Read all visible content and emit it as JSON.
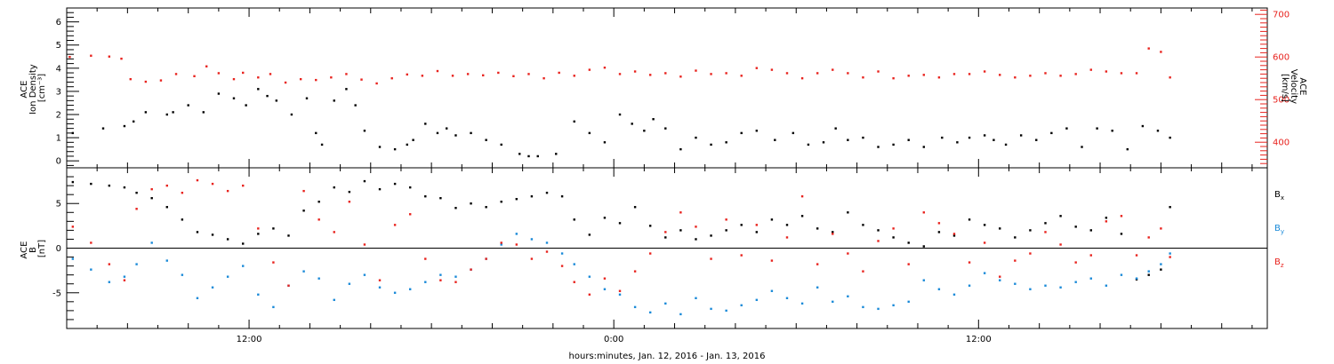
{
  "figure": {
    "xlabel": "hours:minutes, Jan. 12, 2016 - Jan. 13, 2016",
    "x_tick_labels": [
      "12:00",
      "0:00",
      "12:00"
    ],
    "colors": {
      "axis": "#000000",
      "red": "#e8231e",
      "blue": "#1a8ad8",
      "black": "#000000"
    }
  },
  "chart_data": [
    {
      "type": "scatter",
      "panel": "top",
      "xlim_hours": [
        6.0,
        45.5
      ],
      "x_tick_hours": [
        12,
        24,
        36
      ],
      "left_axis": {
        "label_lines": [
          "ACE",
          "Ion Density",
          "[cm⁻³]"
        ],
        "ylim": [
          -0.3,
          6.6
        ],
        "ticks": [
          0,
          1,
          2,
          3,
          4,
          5,
          6
        ]
      },
      "right_axis": {
        "label_lines": [
          "ACE",
          "Velocity",
          "[km/s]"
        ],
        "ylim": [
          340,
          715
        ],
        "ticks": [
          400,
          500,
          600,
          700
        ]
      },
      "series": [
        {
          "axis": "left",
          "color": "#000000",
          "x": [
            6.2,
            7.2,
            7.9,
            8.2,
            8.6,
            9.3,
            9.5,
            10.0,
            10.5,
            11.0,
            11.5,
            11.9,
            12.3,
            12.6,
            12.9,
            13.4,
            13.9,
            14.2,
            14.4,
            14.8,
            15.2,
            15.5,
            15.8,
            16.3,
            16.8,
            17.2,
            17.4,
            17.8,
            18.2,
            18.5,
            18.8,
            19.3,
            19.8,
            20.3,
            20.9,
            21.2,
            21.5,
            22.1,
            22.7,
            23.2,
            23.7,
            24.2,
            24.6,
            25.0,
            25.3,
            25.7,
            26.2,
            26.7,
            27.2,
            27.7,
            28.2,
            28.7,
            29.3,
            29.9,
            30.4,
            30.9,
            31.3,
            31.7,
            32.2,
            32.7,
            33.2,
            33.7,
            34.2,
            34.8,
            35.3,
            35.7,
            36.2,
            36.5,
            36.9,
            37.4,
            37.9,
            38.4,
            38.9,
            39.4,
            39.9,
            40.4,
            40.9,
            41.4,
            41.9,
            42.3
          ],
          "y": [
            1.2,
            1.4,
            1.5,
            1.7,
            2.1,
            2.0,
            2.1,
            2.4,
            2.1,
            2.9,
            2.7,
            2.4,
            3.1,
            2.8,
            2.6,
            2.0,
            2.7,
            1.2,
            0.7,
            2.6,
            3.1,
            2.4,
            1.3,
            0.6,
            0.5,
            0.7,
            0.9,
            1.6,
            1.2,
            1.4,
            1.1,
            1.2,
            0.9,
            0.7,
            0.3,
            0.2,
            0.2,
            0.3,
            1.7,
            1.2,
            0.8,
            2.0,
            1.6,
            1.3,
            1.8,
            1.4,
            0.5,
            1.0,
            0.7,
            0.8,
            1.2,
            1.3,
            0.9,
            1.2,
            0.7,
            0.8,
            1.4,
            0.9,
            1.0,
            0.6,
            0.7,
            0.9,
            0.6,
            1.0,
            0.8,
            1.0,
            1.1,
            0.9,
            0.7,
            1.1,
            0.9,
            1.2,
            1.4,
            0.6,
            1.4,
            1.3,
            0.5,
            1.5,
            1.3,
            1.0
          ]
        },
        {
          "axis": "right",
          "color": "#e8231e",
          "x": [
            6.1,
            6.8,
            7.4,
            7.8,
            8.1,
            8.6,
            9.1,
            9.6,
            10.2,
            10.6,
            11.0,
            11.5,
            11.8,
            12.3,
            12.7,
            13.2,
            13.7,
            14.2,
            14.7,
            15.2,
            15.7,
            16.2,
            16.7,
            17.2,
            17.7,
            18.2,
            18.7,
            19.2,
            19.7,
            20.2,
            20.7,
            21.2,
            21.7,
            22.2,
            22.7,
            23.2,
            23.7,
            24.2,
            24.7,
            25.2,
            25.7,
            26.2,
            26.7,
            27.2,
            27.7,
            28.2,
            28.7,
            29.2,
            29.7,
            30.2,
            30.7,
            31.2,
            31.7,
            32.2,
            32.7,
            33.2,
            33.7,
            34.2,
            34.7,
            35.2,
            35.7,
            36.2,
            36.7,
            37.2,
            37.7,
            38.2,
            38.7,
            39.2,
            39.7,
            40.2,
            40.7,
            41.2,
            41.6,
            42.0,
            42.3
          ],
          "y": [
            600,
            603,
            601,
            596,
            548,
            542,
            545,
            560,
            555,
            578,
            562,
            548,
            563,
            552,
            560,
            540,
            548,
            546,
            552,
            560,
            547,
            538,
            550,
            559,
            556,
            567,
            556,
            560,
            557,
            563,
            555,
            560,
            550,
            563,
            556,
            570,
            575,
            560,
            566,
            558,
            562,
            554,
            568,
            560,
            562,
            556,
            574,
            570,
            562,
            550,
            562,
            570,
            562,
            552,
            566,
            550,
            556,
            558,
            552,
            560,
            560,
            566,
            558,
            552,
            556,
            562,
            556,
            560,
            570,
            566,
            562,
            562,
            620,
            612,
            552
          ]
        }
      ]
    },
    {
      "type": "scatter",
      "panel": "bottom",
      "xlim_hours": [
        6.0,
        45.5
      ],
      "x_tick_hours": [
        12,
        24,
        36
      ],
      "axis": {
        "label_lines": [
          "ACE",
          "B",
          "[nT]"
        ],
        "ylim": [
          -9.0,
          9.0
        ],
        "ticks": [
          -5,
          0,
          5
        ],
        "zero_line": true
      },
      "legend": {
        "placement": "right",
        "entries": [
          {
            "label": "B",
            "sub": "x",
            "color": "#000000"
          },
          {
            "label": "B",
            "sub": "y",
            "color": "#1a8ad8"
          },
          {
            "label": "B",
            "sub": "z",
            "color": "#e8231e"
          }
        ]
      },
      "series": [
        {
          "name": "Bx",
          "color": "#000000",
          "x": [
            6.2,
            6.8,
            7.4,
            7.9,
            8.3,
            8.8,
            9.3,
            9.8,
            10.3,
            10.8,
            11.3,
            11.8,
            12.3,
            12.8,
            13.3,
            13.8,
            14.3,
            14.8,
            15.3,
            15.8,
            16.3,
            16.8,
            17.3,
            17.8,
            18.3,
            18.8,
            19.3,
            19.8,
            20.3,
            20.8,
            21.3,
            21.8,
            22.3,
            22.7,
            23.2,
            23.7,
            24.2,
            24.7,
            25.2,
            25.7,
            26.2,
            26.7,
            27.2,
            27.7,
            28.2,
            28.7,
            29.2,
            29.7,
            30.2,
            30.7,
            31.2,
            31.7,
            32.2,
            32.7,
            33.2,
            33.7,
            34.2,
            34.7,
            35.2,
            35.7,
            36.2,
            36.7,
            37.2,
            37.7,
            38.2,
            38.7,
            39.2,
            39.7,
            40.2,
            40.7,
            41.2,
            41.6,
            42.0,
            42.3
          ],
          "y": [
            7.4,
            7.2,
            7.0,
            6.8,
            6.2,
            5.6,
            4.6,
            3.2,
            1.8,
            1.5,
            1.0,
            0.5,
            1.6,
            2.2,
            1.4,
            4.2,
            5.2,
            6.8,
            6.3,
            7.5,
            6.6,
            7.2,
            6.8,
            5.8,
            5.6,
            4.5,
            5.0,
            4.6,
            5.2,
            5.5,
            5.8,
            6.2,
            5.8,
            3.2,
            1.5,
            3.4,
            2.8,
            4.6,
            2.5,
            1.2,
            2.0,
            1.0,
            1.4,
            2.0,
            2.6,
            1.8,
            3.2,
            2.6,
            3.6,
            2.2,
            1.8,
            4.0,
            2.6,
            2.0,
            1.2,
            0.6,
            0.2,
            1.8,
            1.4,
            3.2,
            2.6,
            2.2,
            1.2,
            2.0,
            2.8,
            3.6,
            2.4,
            2.0,
            3.4,
            1.6,
            -3.5,
            -3.0,
            -2.4,
            4.6
          ]
        },
        {
          "name": "By",
          "color": "#1a8ad8",
          "x": [
            6.2,
            6.8,
            7.4,
            7.9,
            8.3,
            8.8,
            9.3,
            9.8,
            10.3,
            10.8,
            11.3,
            11.8,
            12.3,
            12.8,
            13.3,
            13.8,
            14.3,
            14.8,
            15.3,
            15.8,
            16.3,
            16.8,
            17.3,
            17.8,
            18.3,
            18.8,
            19.3,
            19.8,
            20.3,
            20.8,
            21.3,
            21.8,
            22.3,
            22.7,
            23.2,
            23.7,
            24.2,
            24.7,
            25.2,
            25.7,
            26.2,
            26.7,
            27.2,
            27.7,
            28.2,
            28.7,
            29.2,
            29.7,
            30.2,
            30.7,
            31.2,
            31.7,
            32.2,
            32.7,
            33.2,
            33.7,
            34.2,
            34.7,
            35.2,
            35.7,
            36.2,
            36.7,
            37.2,
            37.7,
            38.2,
            38.7,
            39.2,
            39.7,
            40.2,
            40.7,
            41.2,
            41.6,
            42.0,
            42.3
          ],
          "y": [
            -1.2,
            -2.4,
            -3.8,
            -3.2,
            -1.8,
            0.6,
            -1.4,
            -3.0,
            -5.6,
            -4.4,
            -3.2,
            -2.0,
            -5.2,
            -6.6,
            -4.2,
            -2.6,
            -3.4,
            -5.8,
            -4.0,
            -3.0,
            -4.4,
            -5.0,
            -4.6,
            -3.8,
            -3.0,
            -3.2,
            -2.4,
            -1.2,
            0.4,
            1.6,
            1.0,
            0.6,
            -0.6,
            -1.8,
            -3.2,
            -4.6,
            -5.2,
            -6.6,
            -7.2,
            -6.2,
            -7.4,
            -5.6,
            -6.8,
            -7.0,
            -6.4,
            -5.8,
            -4.8,
            -5.6,
            -6.2,
            -4.4,
            -6.0,
            -5.4,
            -6.6,
            -6.8,
            -6.4,
            -6.0,
            -3.6,
            -4.6,
            -5.2,
            -4.2,
            -2.8,
            -3.6,
            -4.0,
            -4.6,
            -4.2,
            -4.4,
            -3.8,
            -3.4,
            -4.2,
            -3.0,
            -3.4,
            -2.6,
            -1.8,
            -0.6
          ]
        },
        {
          "name": "Bz",
          "color": "#e8231e",
          "x": [
            6.2,
            6.8,
            7.4,
            7.9,
            8.3,
            8.8,
            9.3,
            9.8,
            10.3,
            10.8,
            11.3,
            11.8,
            12.3,
            12.8,
            13.3,
            13.8,
            14.3,
            14.8,
            15.3,
            15.8,
            16.3,
            16.8,
            17.3,
            17.8,
            18.3,
            18.8,
            19.3,
            19.8,
            20.3,
            20.8,
            21.3,
            21.8,
            22.3,
            22.7,
            23.2,
            23.7,
            24.2,
            24.7,
            25.2,
            25.7,
            26.2,
            26.7,
            27.2,
            27.7,
            28.2,
            28.7,
            29.2,
            29.7,
            30.2,
            30.7,
            31.2,
            31.7,
            32.2,
            32.7,
            33.2,
            33.7,
            34.2,
            34.7,
            35.2,
            35.7,
            36.2,
            36.7,
            37.2,
            37.7,
            38.2,
            38.7,
            39.2,
            39.7,
            40.2,
            40.7,
            41.2,
            41.6,
            42.0,
            42.3
          ],
          "y": [
            2.4,
            0.6,
            -1.8,
            -3.6,
            4.4,
            6.6,
            7.0,
            6.2,
            7.6,
            7.2,
            6.4,
            7.0,
            2.2,
            -1.6,
            -4.2,
            6.4,
            3.2,
            1.8,
            5.2,
            0.4,
            -3.6,
            2.6,
            3.8,
            -1.2,
            -3.6,
            -3.8,
            -2.4,
            -1.2,
            0.6,
            0.4,
            -1.2,
            -0.4,
            -2.0,
            -3.8,
            -5.2,
            -3.4,
            -4.8,
            -2.6,
            -0.6,
            1.8,
            4.0,
            2.4,
            -1.2,
            3.2,
            -0.8,
            2.6,
            -1.4,
            1.2,
            5.8,
            -1.8,
            1.6,
            -0.6,
            -2.6,
            0.8,
            2.2,
            -1.8,
            4.0,
            2.8,
            1.6,
            -1.6,
            0.6,
            -3.2,
            -1.4,
            -0.6,
            1.8,
            0.4,
            -1.6,
            -0.8,
            3.0,
            3.6,
            -0.8,
            1.2,
            2.2,
            -1.0
          ]
        }
      ]
    }
  ]
}
